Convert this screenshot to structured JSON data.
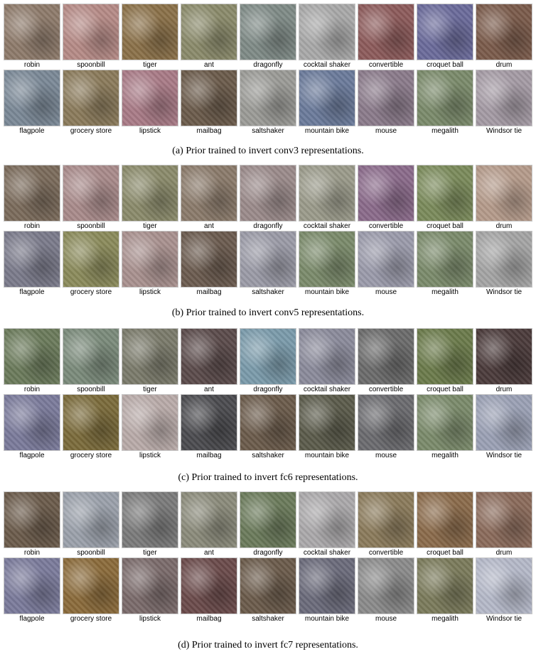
{
  "rows": [
    [
      "robin",
      "spoonbill",
      "tiger",
      "ant",
      "dragonfly",
      "cocktail shaker",
      "convertible",
      "croquet ball",
      "drum"
    ],
    [
      "flagpole",
      "grocery store",
      "lipstick",
      "mailbag",
      "saltshaker",
      "mountain bike",
      "mouse",
      "megalith",
      "Windsor tie"
    ]
  ],
  "panels": [
    {
      "caption": "(a) Prior trained to invert conv3 representations.",
      "colors": [
        [
          "#8d7a6a",
          "#b58a86",
          "#8a7048",
          "#8a8a6a",
          "#7e8a86",
          "#a8a8a8",
          "#8c5a5a",
          "#6a6a9a",
          "#7a5a4a"
        ],
        [
          "#7a8896",
          "#8a7a5a",
          "#a87a86",
          "#6a5a4a",
          "#9a9a96",
          "#6a7a9a",
          "#8a7a8a",
          "#7a8a6a",
          "#a49aa4"
        ]
      ]
    },
    {
      "caption": "(b) Prior trained to invert conv5 representations.",
      "colors": [
        [
          "#7a6a5a",
          "#a88a8a",
          "#8a8a6a",
          "#8a7a6a",
          "#9a8a8a",
          "#9a9a8a",
          "#8a6a8a",
          "#7a8a5a",
          "#b49a8a"
        ],
        [
          "#7a7a8a",
          "#8a8a5a",
          "#a8908e",
          "#6a5a4e",
          "#9a9aa6",
          "#7a8a6a",
          "#9a9aaa",
          "#7a8a6a",
          "#a4a4a4"
        ]
      ]
    },
    {
      "caption": "(c) Prior trained to invert fc6 representations.",
      "colors": [
        [
          "#6a7a5a",
          "#7a8a7a",
          "#7a7a6a",
          "#5a4a4a",
          "#7a9aaa",
          "#8a8a9a",
          "#6a6a6a",
          "#6a7a4a",
          "#4a3a3a"
        ],
        [
          "#7a7a9a",
          "#7a6a3a",
          "#b8aaa8",
          "#4a4a4e",
          "#6a5a4a",
          "#5a5a4a",
          "#6a6a6e",
          "#7a8a6a",
          "#9aa0b4"
        ]
      ]
    },
    {
      "caption": "(d) Prior trained to invert fc7 representations.",
      "colors": [
        [
          "#6a5a4a",
          "#9aa0aa",
          "#7a7a7a",
          "#8a8a7a",
          "#6a7a5a",
          "#aaa8aa",
          "#8a7a5a",
          "#8a6a4a",
          "#8a6a5a"
        ],
        [
          "#7a7a9a",
          "#8a6a3a",
          "#7a6a6a",
          "#6a4a4a",
          "#6a5a4a",
          "#6a6a7a",
          "#8a8a8a",
          "#7a7a5a",
          "#b4b8c8"
        ]
      ]
    }
  ]
}
